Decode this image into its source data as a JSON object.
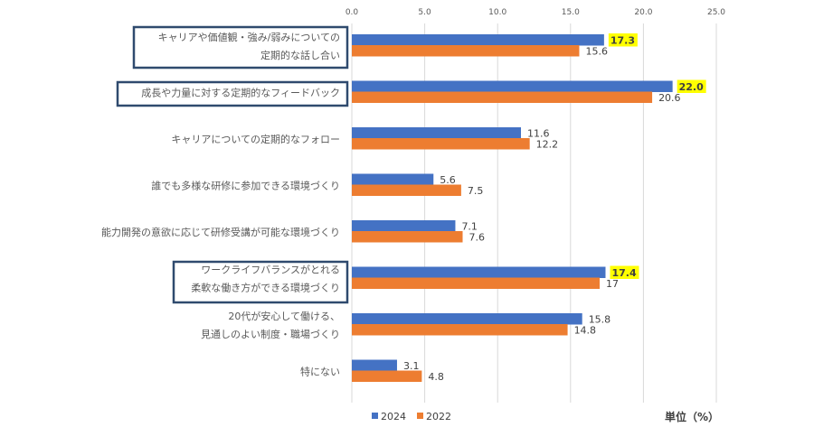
{
  "chart_data": {
    "type": "bar",
    "orientation": "horizontal",
    "xlim": [
      0,
      25
    ],
    "ticks": [
      0,
      5,
      10,
      15,
      20,
      25
    ],
    "tick_labels": [
      "0.0",
      "5.0",
      "10.0",
      "15.0",
      "20.0",
      "25.0"
    ],
    "grid": true,
    "legend_position": "bottom",
    "unit_label": "単位（%）",
    "categories": [
      {
        "lines": [
          "キャリアや価値観・強み/弱みについての",
          "定期的な話し合い"
        ],
        "boxed": true
      },
      {
        "lines": [
          "成長や力量に対する定期的なフィードバック"
        ],
        "boxed": true
      },
      {
        "lines": [
          "キャリアについての定期的なフォロー"
        ],
        "boxed": false
      },
      {
        "lines": [
          "誰でも多様な研修に参加できる環境づくり"
        ],
        "boxed": false
      },
      {
        "lines": [
          "能力開発の意欲に応じて研修受講が可能な環境づくり"
        ],
        "boxed": false
      },
      {
        "lines": [
          "ワークライフバランスがとれる",
          "柔軟な働き方ができる環境づくり"
        ],
        "boxed": true
      },
      {
        "lines": [
          "20代が安心して働ける、",
          "見通しのよい制度・職場づくり"
        ],
        "boxed": false
      },
      {
        "lines": [
          "特にない"
        ],
        "boxed": false
      }
    ],
    "series": [
      {
        "name": "2024",
        "color": "#4472C4",
        "values": [
          17.3,
          22.0,
          11.6,
          5.6,
          7.1,
          17.4,
          15.8,
          3.1
        ],
        "labels": [
          "17.3",
          "22.0",
          "11.6",
          "5.6",
          "7.1",
          "17.4",
          "15.8",
          "3.1"
        ],
        "highlight": [
          true,
          true,
          false,
          false,
          false,
          true,
          false,
          false
        ]
      },
      {
        "name": "2022",
        "color": "#ED7D31",
        "values": [
          15.6,
          20.6,
          12.2,
          7.5,
          7.6,
          17,
          14.8,
          4.8
        ],
        "labels": [
          "15.6",
          "20.6",
          "12.2",
          "7.5",
          "7.6",
          "17",
          "14.8",
          "4.8"
        ],
        "highlight": [
          false,
          false,
          false,
          false,
          false,
          false,
          false,
          false
        ]
      }
    ],
    "highlight_color": "#FFFF00",
    "box_border_color": "#2F4A6E"
  }
}
